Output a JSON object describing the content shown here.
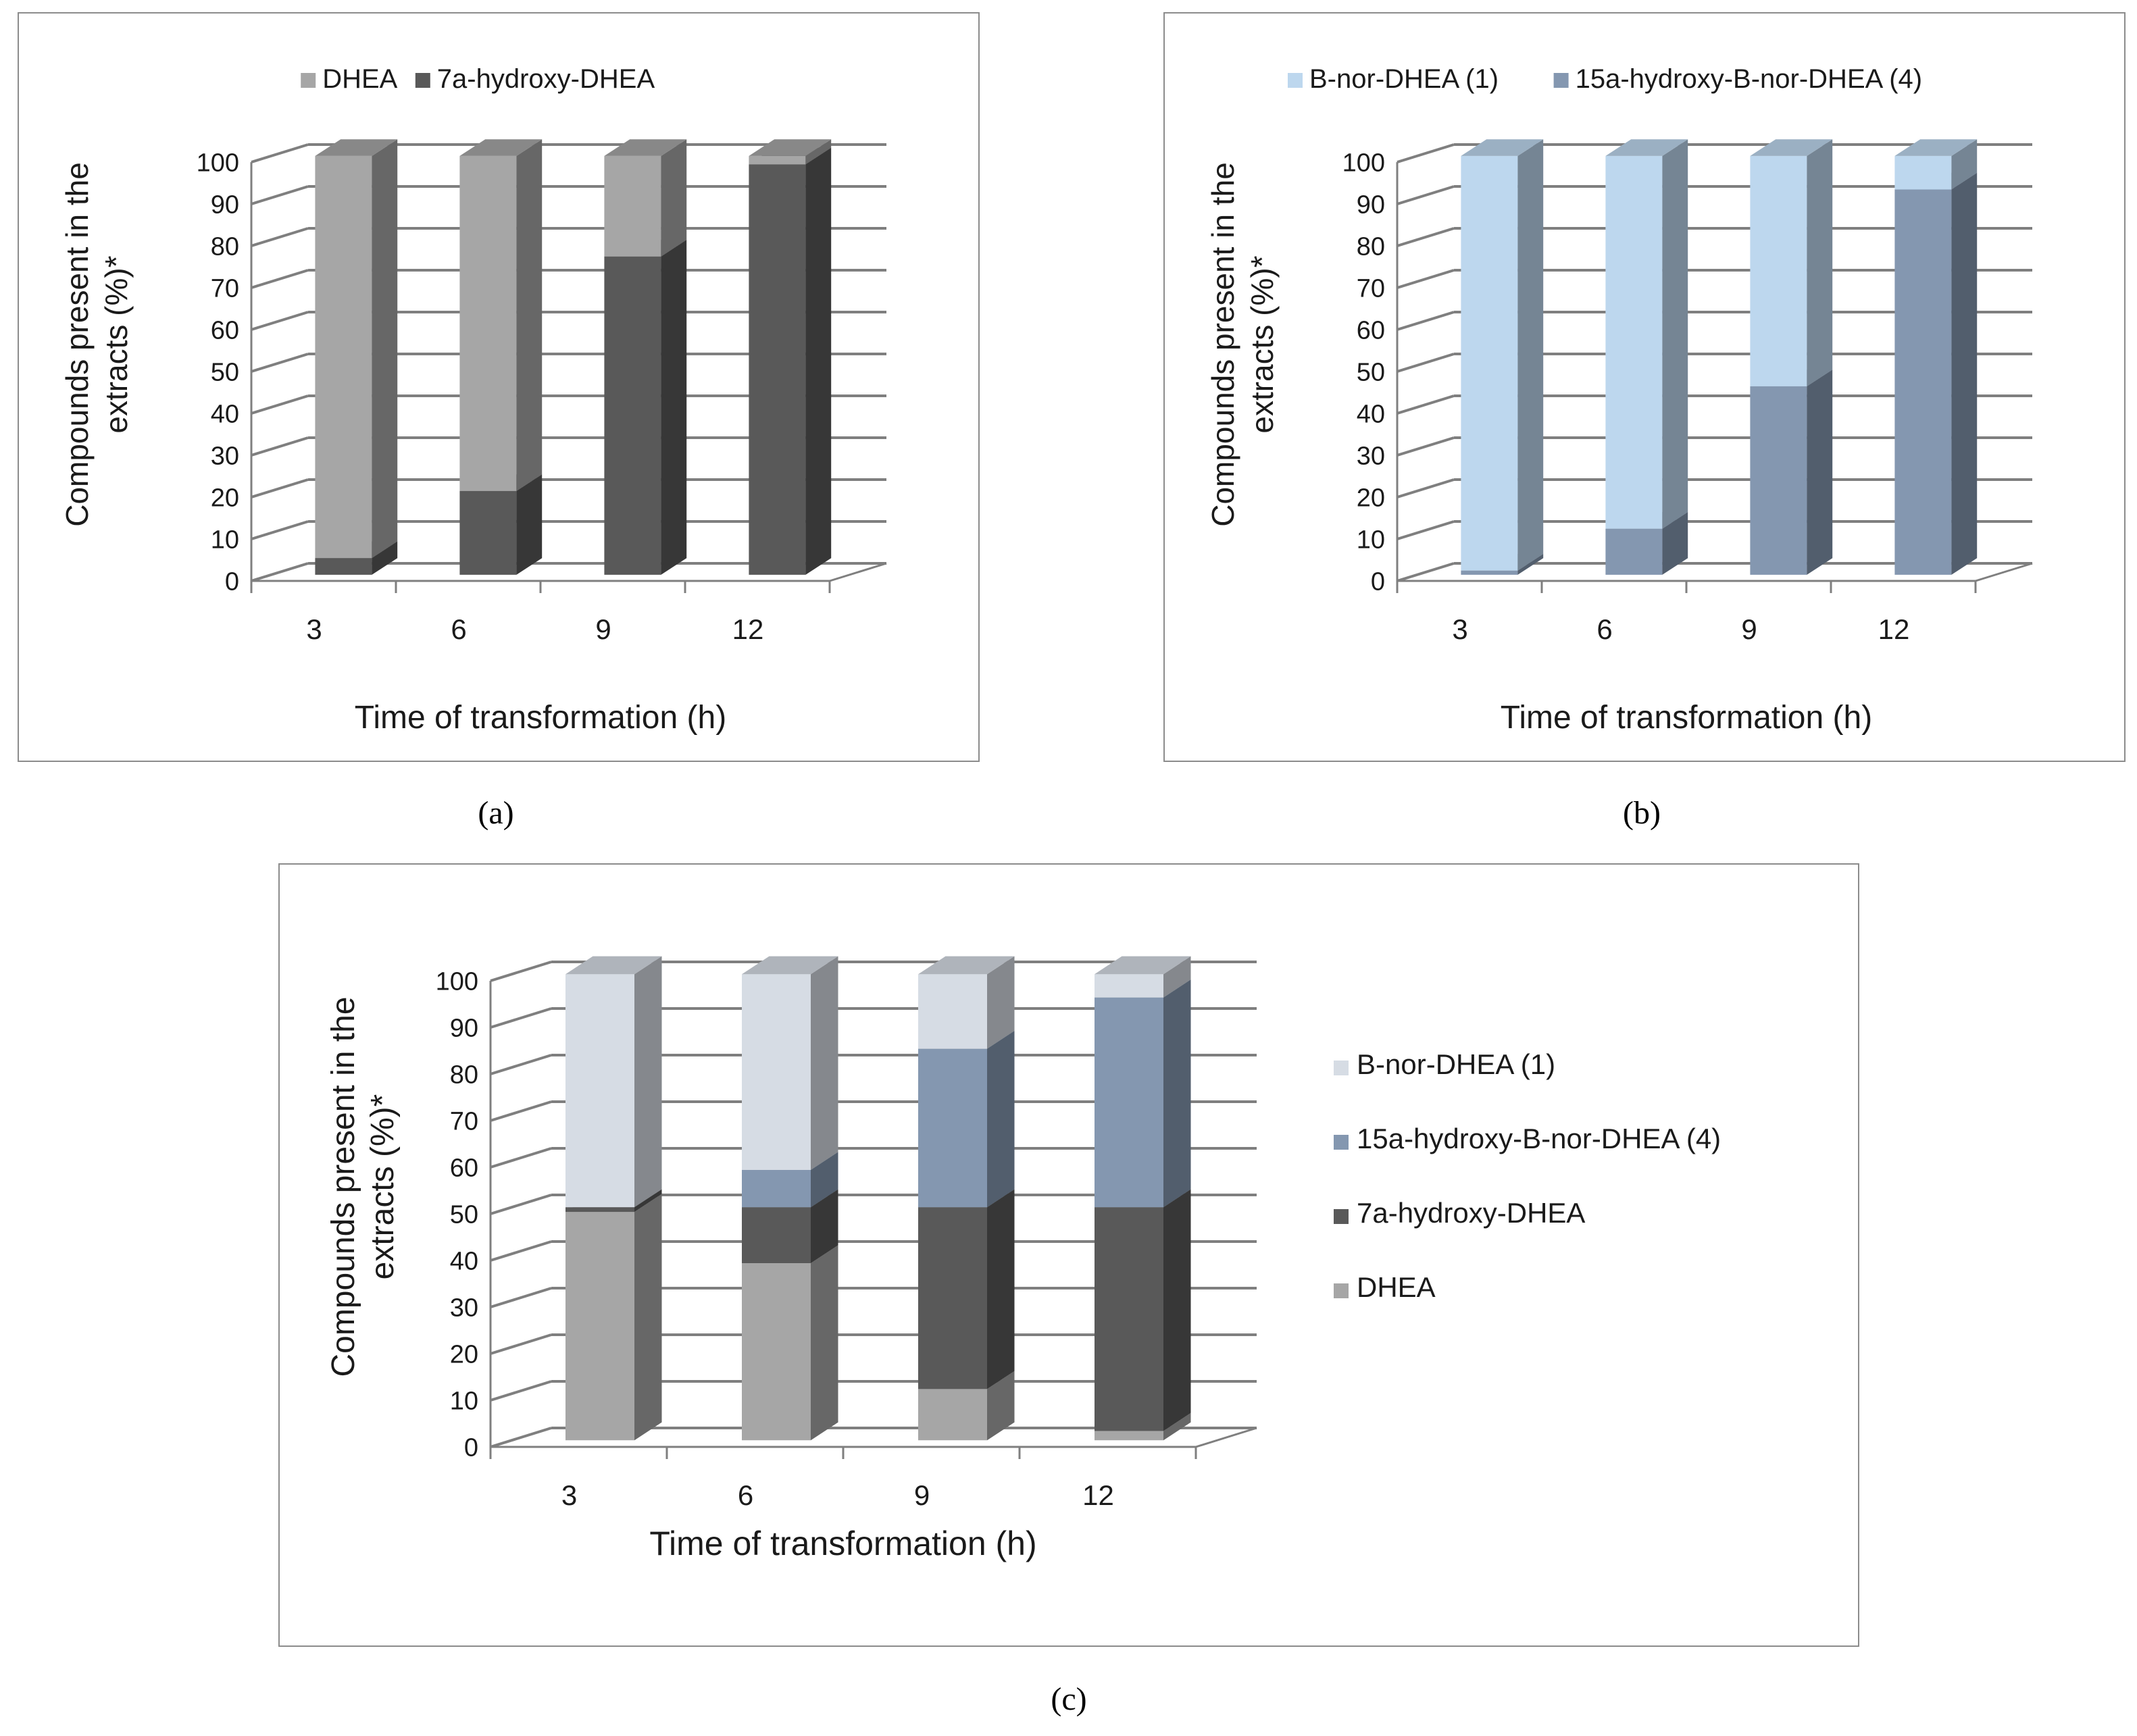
{
  "chart_data": [
    {
      "panel": "a",
      "type": "bar",
      "stacked": true,
      "style": "3d-column",
      "categories": [
        "3",
        "6",
        "9",
        "12"
      ],
      "series": [
        {
          "name": "DHEA",
          "color": "#a6a6a6",
          "values": [
            96,
            80,
            24,
            2
          ]
        },
        {
          "name": "7a-hydroxy-DHEA",
          "color": "#595959",
          "values": [
            4,
            20,
            76,
            98
          ]
        }
      ],
      "xlabel": "Time of transformation (h)",
      "ylabel_lines": [
        "Compounds present in the",
        "extracts (%)*"
      ],
      "yticks": [
        "0",
        "10",
        "20",
        "30",
        "40",
        "50",
        "60",
        "70",
        "80",
        "90",
        "100"
      ],
      "ylim": [
        0,
        100
      ],
      "legend_position": "top",
      "grid": true
    },
    {
      "panel": "b",
      "type": "bar",
      "stacked": true,
      "style": "3d-column",
      "categories": [
        "3",
        "6",
        "9",
        "12"
      ],
      "series": [
        {
          "name": "B-nor-DHEA (1)",
          "color": "#bdd7ee",
          "values": [
            99,
            89,
            55,
            8
          ]
        },
        {
          "name": "15a-hydroxy-B-nor-DHEA (4)",
          "color": "#8497b0",
          "values": [
            1,
            11,
            45,
            92
          ]
        }
      ],
      "xlabel": "Time of transformation (h)",
      "ylabel_lines": [
        "Compounds present in the",
        "extracts (%)*"
      ],
      "yticks": [
        "0",
        "10",
        "20",
        "30",
        "40",
        "50",
        "60",
        "70",
        "80",
        "90",
        "100"
      ],
      "ylim": [
        0,
        100
      ],
      "legend_position": "top",
      "grid": true
    },
    {
      "panel": "c",
      "type": "bar",
      "stacked": true,
      "style": "3d-column",
      "categories": [
        "3",
        "6",
        "9",
        "12"
      ],
      "series": [
        {
          "name": "B-nor-DHEA (1)",
          "color": "#d6dce4",
          "values": [
            50,
            42,
            16,
            5
          ]
        },
        {
          "name": "15a-hydroxy-B-nor-DHEA (4)",
          "color": "#8497b0",
          "values": [
            0,
            8,
            34,
            45
          ]
        },
        {
          "name": "7a-hydroxy-DHEA",
          "color": "#595959",
          "values": [
            1,
            12,
            39,
            48
          ]
        },
        {
          "name": "DHEA",
          "color": "#a6a6a6",
          "values": [
            49,
            38,
            11,
            2
          ]
        }
      ],
      "xlabel": "Time of transformation (h)",
      "ylabel_lines": [
        "Compounds present in the",
        "extracts (%)*"
      ],
      "yticks": [
        "0",
        "10",
        "20",
        "30",
        "40",
        "50",
        "60",
        "70",
        "80",
        "90",
        "100"
      ],
      "ylim": [
        0,
        100
      ],
      "legend_position": "right",
      "grid": true
    }
  ],
  "captions": {
    "a": "(a)",
    "b": "(b)",
    "c": "(c)"
  }
}
